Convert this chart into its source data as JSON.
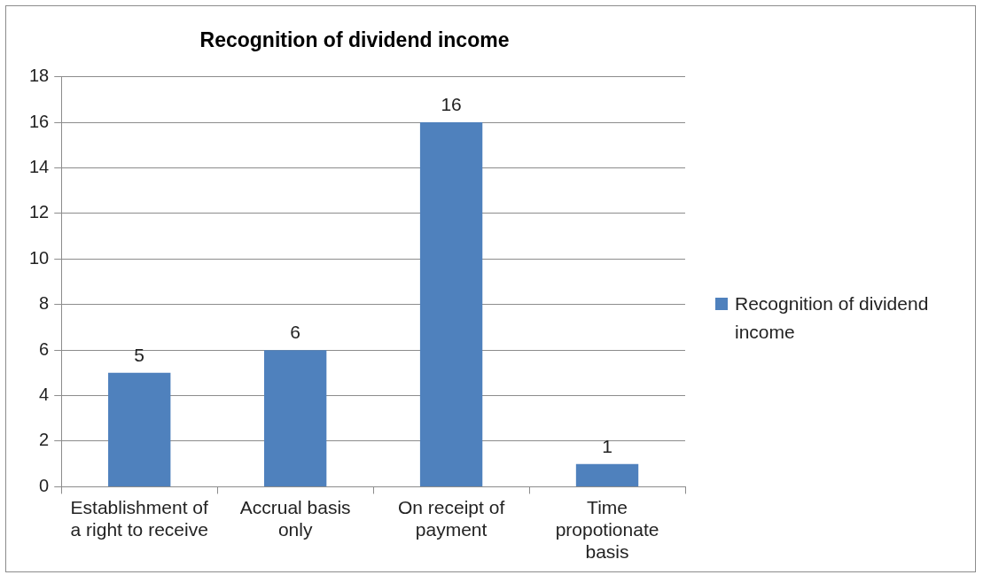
{
  "chart_data": {
    "type": "bar",
    "title": "Recognition of dividend income",
    "categories": [
      "Establishment of a right to receive",
      "Accrual basis only",
      "On receipt of payment",
      "Time propotionate basis"
    ],
    "series": [
      {
        "name": "Recognition of dividend income",
        "color": "#4f81bd",
        "values": [
          5,
          6,
          16,
          1
        ]
      }
    ],
    "ylim": [
      0,
      18
    ],
    "yticks": [
      0,
      2,
      4,
      6,
      8,
      10,
      12,
      14,
      16,
      18
    ],
    "grid": "y",
    "legend": "right",
    "data_labels": true
  }
}
